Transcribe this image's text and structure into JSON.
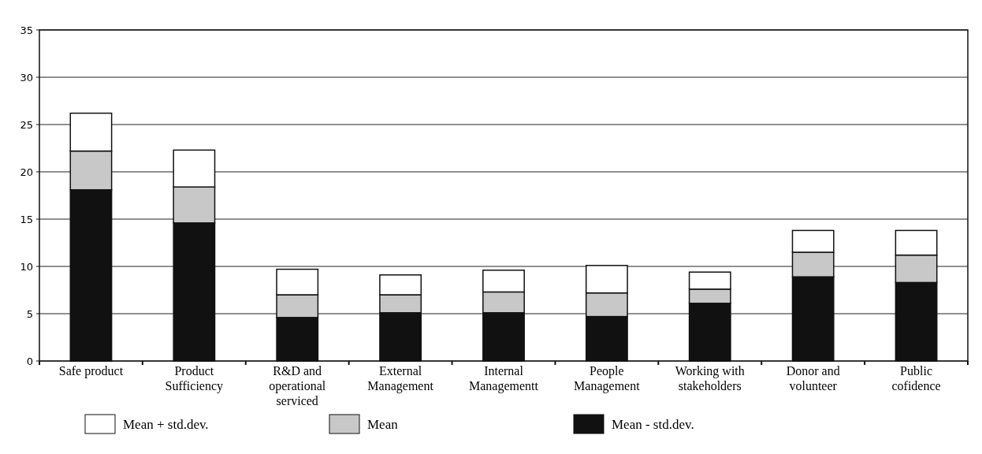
{
  "chart_data": {
    "type": "bar",
    "stacked": true,
    "categories": [
      "Safe product",
      "Product\nSufficiency",
      "R&D and\noperational\nserviced",
      "External\nManagement",
      "Internal\nManagementt",
      "People\nManagement",
      "Working with\nstakeholders",
      "Donor and\nvolunteer",
      "Public\ncofidence"
    ],
    "series": [
      {
        "name": "Mean - std.dev.",
        "color": "#111111",
        "values": [
          18.1,
          14.6,
          4.6,
          5.1,
          5.1,
          4.7,
          6.1,
          8.9,
          8.3
        ]
      },
      {
        "name": "Mean",
        "color": "#c8c8c8",
        "values": [
          4.1,
          3.8,
          2.4,
          1.9,
          2.2,
          2.5,
          1.5,
          2.6,
          2.9
        ]
      },
      {
        "name": "Mean + std.dev.",
        "color": "#ffffff",
        "values": [
          4.0,
          3.9,
          2.7,
          2.1,
          2.3,
          2.9,
          1.8,
          2.3,
          2.6
        ]
      }
    ],
    "ylim": [
      0,
      35
    ],
    "yticks": [
      0,
      5,
      10,
      15,
      20,
      25,
      30,
      35
    ],
    "grid": "y",
    "legend": "bottom"
  }
}
